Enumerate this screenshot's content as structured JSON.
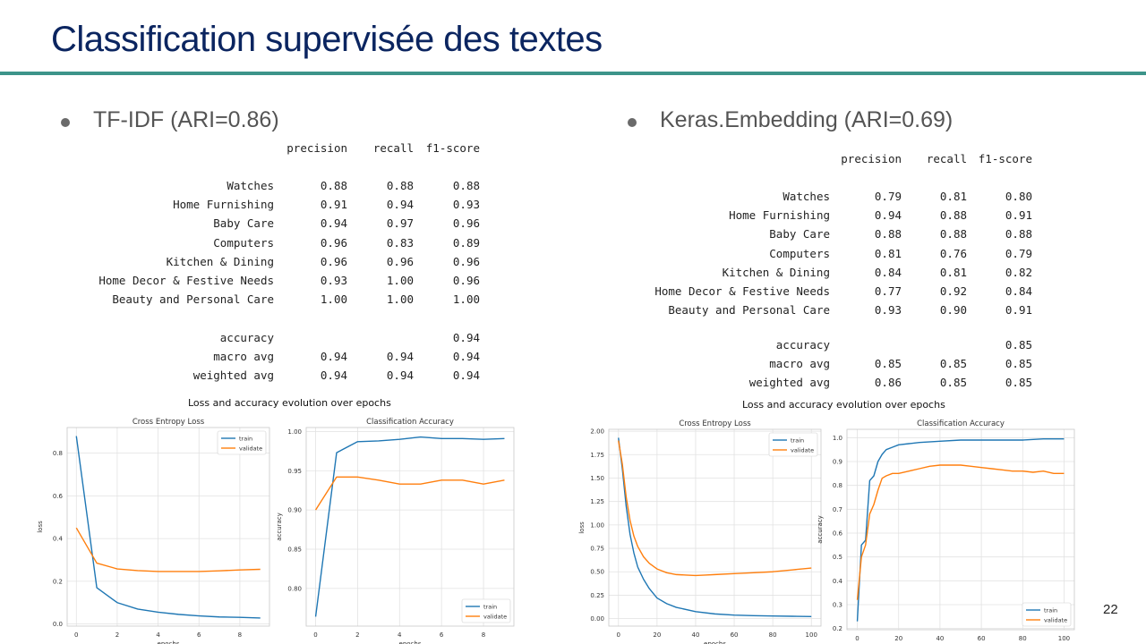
{
  "slide": {
    "title": "Classification supervisée des textes",
    "page_number": "22",
    "colors": {
      "title": "#0b2560",
      "rule": "#3d948a",
      "train": "#1f77b4",
      "validate": "#ff7f0e"
    }
  },
  "panels": [
    {
      "id": "tfidf",
      "bullet": "TF-IDF (ARI=0.86)",
      "report": {
        "headers": [
          "precision",
          "recall",
          "f1-score"
        ],
        "rows": [
          {
            "label": "Watches",
            "values": [
              "0.88",
              "0.88",
              "0.88"
            ]
          },
          {
            "label": "Home Furnishing",
            "values": [
              "0.91",
              "0.94",
              "0.93"
            ]
          },
          {
            "label": "Baby Care",
            "values": [
              "0.94",
              "0.97",
              "0.96"
            ]
          },
          {
            "label": "Computers",
            "values": [
              "0.96",
              "0.83",
              "0.89"
            ]
          },
          {
            "label": "Kitchen & Dining",
            "values": [
              "0.96",
              "0.96",
              "0.96"
            ]
          },
          {
            "label": "Home Decor & Festive Needs",
            "values": [
              "0.93",
              "1.00",
              "0.96"
            ]
          },
          {
            "label": "Beauty and Personal Care",
            "values": [
              "1.00",
              "1.00",
              "1.00"
            ]
          }
        ],
        "summary": [
          {
            "label": "accuracy",
            "values": [
              "",
              "",
              "0.94"
            ]
          },
          {
            "label": "macro avg",
            "values": [
              "0.94",
              "0.94",
              "0.94"
            ]
          },
          {
            "label": "weighted avg",
            "values": [
              "0.94",
              "0.94",
              "0.94"
            ]
          }
        ]
      },
      "figure_title": "Loss and accuracy evolution over epochs"
    },
    {
      "id": "keras",
      "bullet": "Keras.Embedding (ARI=0.69)",
      "report": {
        "headers": [
          "precision",
          "recall",
          "f1-score"
        ],
        "rows": [
          {
            "label": "Watches",
            "values": [
              "0.79",
              "0.81",
              "0.80"
            ]
          },
          {
            "label": "Home Furnishing",
            "values": [
              "0.94",
              "0.88",
              "0.91"
            ]
          },
          {
            "label": "Baby Care",
            "values": [
              "0.88",
              "0.88",
              "0.88"
            ]
          },
          {
            "label": "Computers",
            "values": [
              "0.81",
              "0.76",
              "0.79"
            ]
          },
          {
            "label": "Kitchen & Dining",
            "values": [
              "0.84",
              "0.81",
              "0.82"
            ]
          },
          {
            "label": "Home Decor & Festive Needs",
            "values": [
              "0.77",
              "0.92",
              "0.84"
            ]
          },
          {
            "label": "Beauty and Personal Care",
            "values": [
              "0.93",
              "0.90",
              "0.91"
            ]
          }
        ],
        "summary": [
          {
            "label": "accuracy",
            "values": [
              "",
              "",
              "0.85"
            ]
          },
          {
            "label": "macro avg",
            "values": [
              "0.85",
              "0.85",
              "0.85"
            ]
          },
          {
            "label": "weighted avg",
            "values": [
              "0.86",
              "0.85",
              "0.85"
            ]
          }
        ]
      },
      "figure_title": "Loss and accuracy evolution over epochs"
    }
  ],
  "chart_data": [
    {
      "type": "line",
      "title": "Cross Entropy Loss",
      "xlabel": "epochs",
      "ylabel": "loss",
      "xlim": [
        -0.45,
        9.45
      ],
      "ylim": [
        -0.01,
        0.92
      ],
      "xticks": [
        0,
        2,
        4,
        6,
        8
      ],
      "yticks": [
        0.0,
        0.2,
        0.4,
        0.6,
        0.8
      ],
      "ytick_labels": [
        "0.0",
        "0.2",
        "0.4",
        "0.6",
        "0.8"
      ],
      "grid": true,
      "legend": "top-right",
      "series": [
        {
          "name": "train",
          "color": "#1f77b4",
          "x": [
            0,
            1,
            2,
            3,
            4,
            5,
            6,
            7,
            8,
            9
          ],
          "y": [
            0.88,
            0.17,
            0.1,
            0.07,
            0.055,
            0.045,
            0.038,
            0.033,
            0.031,
            0.028
          ]
        },
        {
          "name": "validate",
          "color": "#ff7f0e",
          "x": [
            0,
            1,
            2,
            3,
            4,
            5,
            6,
            7,
            8,
            9
          ],
          "y": [
            0.45,
            0.285,
            0.258,
            0.25,
            0.246,
            0.246,
            0.246,
            0.249,
            0.253,
            0.256
          ]
        }
      ]
    },
    {
      "type": "line",
      "title": "Classification Accuracy",
      "xlabel": "epochs",
      "ylabel": "accuracy",
      "xlim": [
        -0.45,
        9.45
      ],
      "ylim": [
        0.752,
        1.005
      ],
      "xticks": [
        0,
        2,
        4,
        6,
        8
      ],
      "yticks": [
        0.8,
        0.85,
        0.9,
        0.95,
        1.0
      ],
      "ytick_labels": [
        "0.80",
        "0.85",
        "0.90",
        "0.95",
        "1.00"
      ],
      "grid": true,
      "legend": "bottom-right",
      "series": [
        {
          "name": "train",
          "color": "#1f77b4",
          "x": [
            0,
            1,
            2,
            3,
            4,
            5,
            6,
            7,
            8,
            9
          ],
          "y": [
            0.764,
            0.973,
            0.987,
            0.988,
            0.99,
            0.993,
            0.991,
            0.991,
            0.99,
            0.991
          ]
        },
        {
          "name": "validate",
          "color": "#ff7f0e",
          "x": [
            0,
            1,
            2,
            3,
            4,
            5,
            6,
            7,
            8,
            9
          ],
          "y": [
            0.9,
            0.942,
            0.942,
            0.938,
            0.933,
            0.933,
            0.938,
            0.938,
            0.933,
            0.938
          ]
        }
      ]
    },
    {
      "type": "line",
      "title": "Cross Entropy Loss",
      "xlabel": "epochs",
      "ylabel": "loss",
      "xlim": [
        -5,
        105
      ],
      "ylim": [
        -0.08,
        2.02
      ],
      "xticks": [
        0,
        20,
        40,
        60,
        80,
        100
      ],
      "yticks": [
        0.0,
        0.25,
        0.5,
        0.75,
        1.0,
        1.25,
        1.5,
        1.75,
        2.0
      ],
      "ytick_labels": [
        "0.00",
        "0.25",
        "0.50",
        "0.75",
        "1.00",
        "1.25",
        "1.50",
        "1.75",
        "2.00"
      ],
      "grid": true,
      "legend": "top-right",
      "series": [
        {
          "name": "train",
          "color": "#1f77b4",
          "x": [
            0,
            2,
            4,
            6,
            8,
            10,
            13,
            16,
            20,
            25,
            30,
            40,
            50,
            60,
            70,
            80,
            90,
            100
          ],
          "y": [
            1.93,
            1.6,
            1.2,
            0.9,
            0.7,
            0.55,
            0.42,
            0.32,
            0.22,
            0.16,
            0.12,
            0.075,
            0.05,
            0.038,
            0.032,
            0.028,
            0.025,
            0.022
          ]
        },
        {
          "name": "validate",
          "color": "#ff7f0e",
          "x": [
            0,
            2,
            4,
            6,
            8,
            10,
            13,
            16,
            20,
            25,
            30,
            35,
            40,
            45,
            50,
            60,
            70,
            80,
            90,
            100
          ],
          "y": [
            1.9,
            1.65,
            1.3,
            1.05,
            0.88,
            0.77,
            0.66,
            0.59,
            0.53,
            0.49,
            0.47,
            0.465,
            0.46,
            0.465,
            0.47,
            0.48,
            0.49,
            0.5,
            0.52,
            0.54
          ]
        }
      ]
    },
    {
      "type": "line",
      "title": "Classification Accuracy",
      "xlabel": "epochs",
      "ylabel": "accuracy",
      "xlim": [
        -5,
        105
      ],
      "ylim": [
        0.195,
        1.035
      ],
      "xticks": [
        0,
        20,
        40,
        60,
        80,
        100
      ],
      "yticks": [
        0.2,
        0.3,
        0.4,
        0.5,
        0.6,
        0.7,
        0.8,
        0.9,
        1.0
      ],
      "ytick_labels": [
        "0.2",
        "0.3",
        "0.4",
        "0.5",
        "0.6",
        "0.7",
        "0.8",
        "0.9",
        "1.0"
      ],
      "grid": true,
      "legend": "bottom-right",
      "series": [
        {
          "name": "train",
          "color": "#1f77b4",
          "x": [
            0,
            2,
            4,
            6,
            8,
            10,
            12,
            14,
            17,
            20,
            25,
            30,
            40,
            50,
            60,
            70,
            80,
            90,
            100
          ],
          "y": [
            0.23,
            0.55,
            0.57,
            0.82,
            0.84,
            0.9,
            0.93,
            0.95,
            0.96,
            0.97,
            0.975,
            0.98,
            0.985,
            0.99,
            0.99,
            0.99,
            0.99,
            0.995,
            0.995
          ]
        },
        {
          "name": "validate",
          "color": "#ff7f0e",
          "x": [
            0,
            2,
            4,
            6,
            8,
            10,
            12,
            14,
            17,
            20,
            25,
            30,
            35,
            40,
            45,
            50,
            55,
            60,
            65,
            70,
            75,
            80,
            85,
            90,
            95,
            100
          ],
          "y": [
            0.32,
            0.5,
            0.55,
            0.68,
            0.72,
            0.78,
            0.83,
            0.84,
            0.85,
            0.85,
            0.86,
            0.87,
            0.88,
            0.885,
            0.885,
            0.885,
            0.88,
            0.875,
            0.87,
            0.865,
            0.86,
            0.86,
            0.855,
            0.86,
            0.85,
            0.85
          ]
        }
      ]
    }
  ]
}
